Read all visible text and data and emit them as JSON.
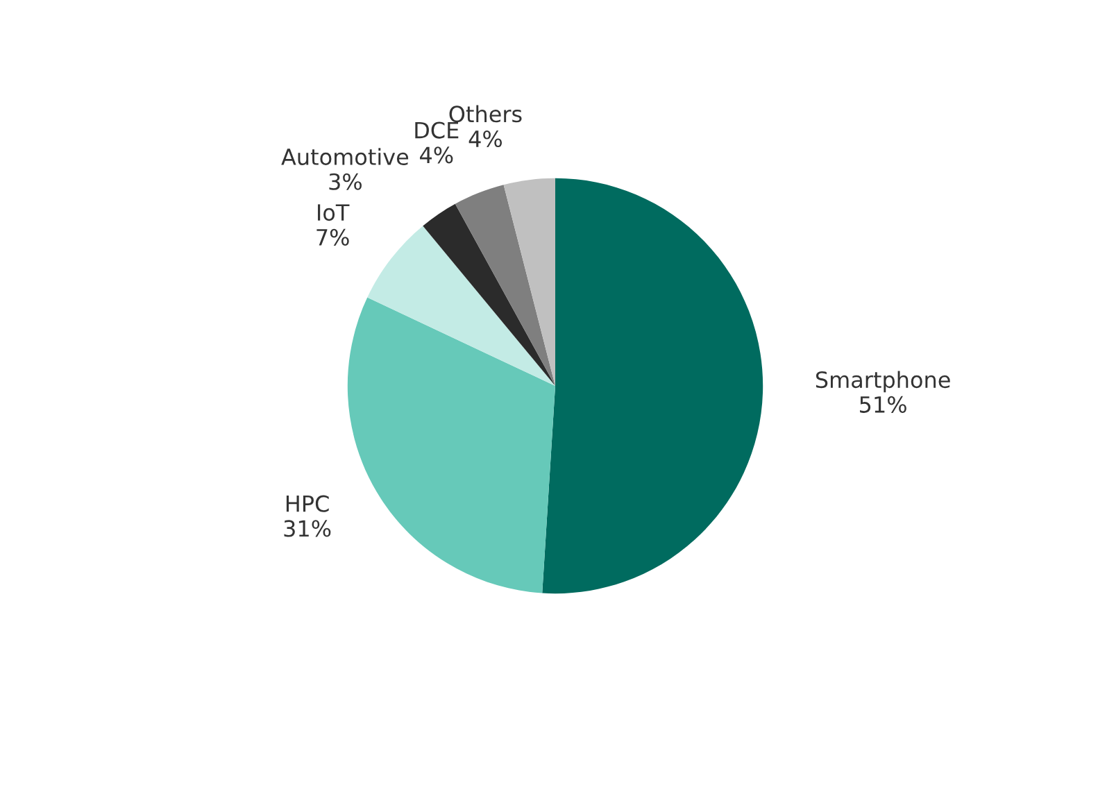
{
  "chart_data": {
    "type": "pie",
    "categories": [
      "Smartphone",
      "HPC",
      "IoT",
      "Automotive",
      "DCE",
      "Others"
    ],
    "values": [
      51,
      31,
      7,
      3,
      4,
      4
    ],
    "value_labels": [
      "51%",
      "31%",
      "7%",
      "3%",
      "4%",
      "4%"
    ],
    "colors": [
      "#006b5f",
      "#66c9b9",
      "#c3ebe5",
      "#2b2b2b",
      "#7f7f7f",
      "#c0c0c0"
    ],
    "legend": false
  }
}
